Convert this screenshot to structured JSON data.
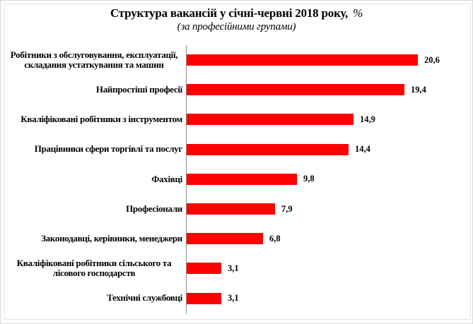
{
  "frame": {
    "outer_border_color": "#d9d9d9",
    "inner_border_color": "#e4e4e4",
    "background": "#ffffff"
  },
  "chart_data": {
    "type": "bar",
    "orientation": "horizontal",
    "title": "Структура вакансій у січні-червні 2018 року,",
    "title_percent": "%",
    "subtitle": "(за професійними групами)",
    "categories": [
      "Робітники з обслуговування, експлуатації, складання устаткування та машин",
      "Найпростіші професії",
      "Кваліфіковані робітники з інструментом",
      "Працівники сфери торгівлі та послуг",
      "Фахівці",
      "Професіонали",
      "Законодавці, керівники, менеджери",
      "Кваліфіковані робітники сільського та лісового господарств",
      "Технічні службовці"
    ],
    "values": [
      20.6,
      19.4,
      14.9,
      14.4,
      9.8,
      7.9,
      6.8,
      3.1,
      3.1
    ],
    "value_labels": [
      "20,6",
      "19,4",
      "14,9",
      "14,4",
      "9,8",
      "7,9",
      "6,8",
      "3,1",
      "3,1"
    ],
    "bar_color": "#FF0000",
    "axis_color": "#8c8c8c",
    "text_color": "#000000",
    "xlim": [
      0,
      25
    ],
    "grid": false,
    "legend": false,
    "xlabel": "",
    "ylabel": ""
  }
}
